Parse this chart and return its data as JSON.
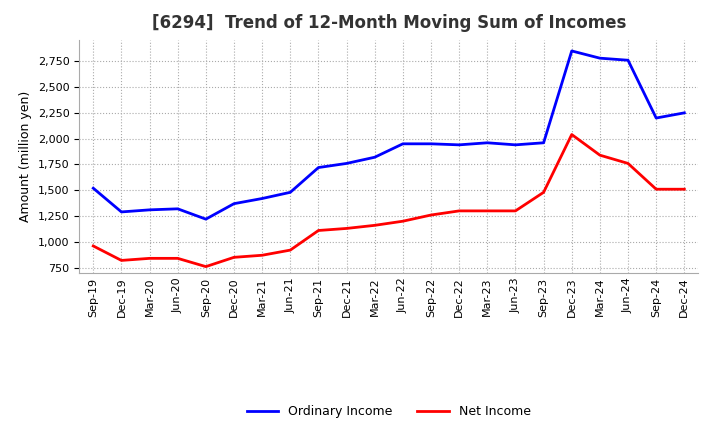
{
  "title": "[6294]  Trend of 12-Month Moving Sum of Incomes",
  "ylabel": "Amount (million yen)",
  "x_labels": [
    "Sep-19",
    "Dec-19",
    "Mar-20",
    "Jun-20",
    "Sep-20",
    "Dec-20",
    "Mar-21",
    "Jun-21",
    "Sep-21",
    "Dec-21",
    "Mar-22",
    "Jun-22",
    "Sep-22",
    "Dec-22",
    "Mar-23",
    "Jun-23",
    "Sep-23",
    "Dec-23",
    "Mar-24",
    "Jun-24",
    "Sep-24",
    "Dec-24"
  ],
  "ordinary_income": [
    1520,
    1290,
    1310,
    1320,
    1220,
    1370,
    1420,
    1480,
    1720,
    1760,
    1820,
    1950,
    1950,
    1940,
    1960,
    1940,
    1960,
    2850,
    2780,
    2760,
    2200,
    2250
  ],
  "net_income": [
    960,
    820,
    840,
    840,
    760,
    850,
    870,
    920,
    1110,
    1130,
    1160,
    1200,
    1260,
    1300,
    1300,
    1300,
    1480,
    2040,
    1840,
    1760,
    1510,
    1510
  ],
  "ordinary_color": "#0000ff",
  "net_color": "#ff0000",
  "ylim": [
    700,
    2960
  ],
  "yticks": [
    750,
    1000,
    1250,
    1500,
    1750,
    2000,
    2250,
    2500,
    2750
  ],
  "grid_color": "#aaaaaa",
  "background_color": "#ffffff",
  "plot_bg_color": "#ffffff",
  "title_fontsize": 12,
  "legend_fontsize": 9,
  "tick_fontsize": 8,
  "ylabel_fontsize": 9
}
